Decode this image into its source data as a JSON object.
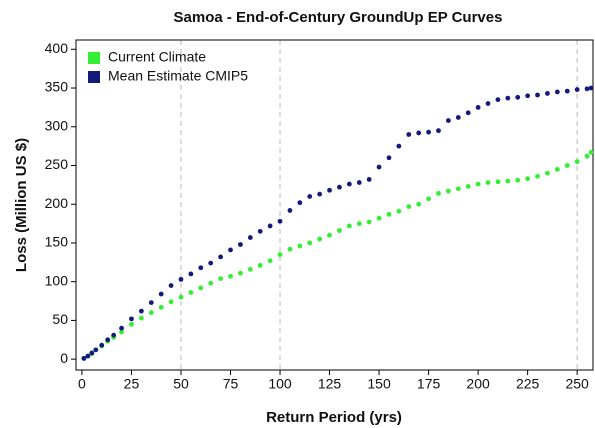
{
  "chart_data": {
    "type": "scatter",
    "title": "Samoa - End-of-Century GroundUp EP Curves",
    "x_label": "Return Period (yrs)",
    "y_label": "Loss (Million US $)",
    "x": [
      1,
      3,
      5,
      7,
      10,
      13,
      16,
      20,
      25,
      30,
      35,
      40,
      45,
      50,
      55,
      60,
      65,
      70,
      75,
      80,
      85,
      90,
      95,
      100,
      105,
      110,
      115,
      120,
      125,
      130,
      135,
      140,
      145,
      150,
      155,
      160,
      165,
      170,
      175,
      180,
      185,
      190,
      195,
      200,
      205,
      210,
      215,
      220,
      225,
      230,
      235,
      240,
      245,
      250,
      255,
      257
    ],
    "series": [
      {
        "name": "Current Climate",
        "color": "#33ee33",
        "values": [
          1,
          4,
          7,
          12,
          17,
          23,
          28,
          35,
          45,
          53,
          60,
          67,
          74,
          80,
          86,
          92,
          98,
          104,
          107,
          111,
          116,
          121,
          127,
          135,
          142,
          146,
          150,
          155,
          160,
          166,
          172,
          175,
          177,
          182,
          187,
          191,
          197,
          200,
          207,
          214,
          217,
          220,
          223,
          226,
          228,
          229,
          230,
          231,
          233,
          236,
          240,
          245,
          250,
          255,
          262,
          267
        ]
      },
      {
        "name": "Mean Estimate CMIP5",
        "color": "#141a7a",
        "values": [
          1,
          4,
          8,
          12,
          18,
          25,
          31,
          40,
          52,
          62,
          73,
          84,
          95,
          103,
          110,
          118,
          124,
          132,
          141,
          148,
          157,
          165,
          172,
          178,
          192,
          202,
          210,
          213,
          218,
          222,
          226,
          228,
          232,
          248,
          260,
          275,
          290,
          292,
          293,
          295,
          308,
          312,
          318,
          325,
          330,
          335,
          337,
          338,
          340,
          341,
          343,
          345,
          346,
          348,
          349,
          350
        ]
      }
    ],
    "xlim": [
      -3,
      258
    ],
    "ylim": [
      -14,
      412
    ],
    "xticks": [
      0,
      25,
      50,
      75,
      100,
      125,
      150,
      175,
      200,
      225,
      250
    ],
    "yticks": [
      0,
      50,
      100,
      150,
      200,
      250,
      300,
      350,
      400
    ],
    "vlines": [
      50,
      100,
      250
    ],
    "legend": "upper left"
  }
}
